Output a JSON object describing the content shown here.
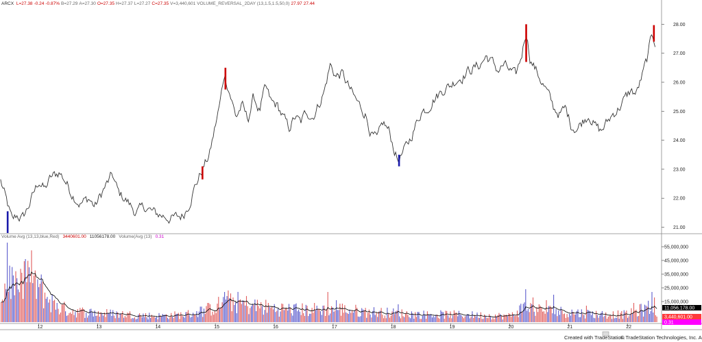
{
  "header": {
    "symbol": "ARCX",
    "quote_items": [
      {
        "text": "L=27.38",
        "color": "#cc0000"
      },
      {
        "text": "-0.24",
        "color": "#cc0000"
      },
      {
        "text": "-0.87%",
        "color": "#cc0000"
      },
      {
        "text": "B=27.29",
        "color": "#666666"
      },
      {
        "text": "A=27.30",
        "color": "#666666"
      },
      {
        "text": "O=27.35",
        "color": "#cc0000"
      },
      {
        "text": "H=27.37",
        "color": "#666666"
      },
      {
        "text": "L=27.27",
        "color": "#666666"
      },
      {
        "text": "C=27.35",
        "color": "#cc0000"
      },
      {
        "text": "V=3,440,601",
        "color": "#666666"
      },
      {
        "text": "VOLUME_REVERSAL_2DAY (13,1.5,1.5,50,0)",
        "color": "#666666"
      },
      {
        "text": "27.97",
        "color": "#cc0000"
      },
      {
        "text": "27.44",
        "color": "#cc0000"
      }
    ]
  },
  "volume_header": {
    "items": [
      {
        "text": "Volume Avg (13,13,blue,Red)",
        "color": "#666666"
      },
      {
        "text": "3440601.00",
        "color": "#cc0000"
      },
      {
        "text": "11056178.00",
        "color": "#222222"
      },
      {
        "text": "Volume(Avg (13)",
        "color": "#666666"
      },
      {
        "text": "0.31",
        "color": "#cc00cc"
      }
    ]
  },
  "footer": {
    "created": "Created with TradeStation.",
    "copyright": "© TradeStation Technologies, Inc. All rights reserved."
  },
  "colors": {
    "price_line": "#333333",
    "reversal_up": "#cc0000",
    "reversal_down": "#1a1aaa",
    "volume_up": "#e05a5a",
    "volume_down": "#5a5acc",
    "volume_avg": "#000000"
  },
  "chart_data": [
    {
      "type": "line",
      "ylim": [
        20.8,
        28.6
      ],
      "xlim": [
        11.34,
        22.58
      ],
      "yticks": [
        "21.00",
        "22.00",
        "23.00",
        "24.00",
        "25.00",
        "26.00",
        "27.00",
        "28.00"
      ],
      "ytick_values": [
        21,
        22,
        23,
        24,
        25,
        26,
        27,
        28
      ],
      "xticks": [
        "12",
        "13",
        "14",
        "15",
        "16",
        "17",
        "18",
        "19",
        "20",
        "21",
        "22"
      ],
      "xtick_values": [
        12,
        13,
        14,
        15,
        16,
        17,
        18,
        19,
        20,
        21,
        22
      ],
      "anchors": [
        [
          11.35,
          22.6
        ],
        [
          11.45,
          21.9
        ],
        [
          11.55,
          21.2
        ],
        [
          11.62,
          21.4
        ],
        [
          11.72,
          21.3
        ],
        [
          11.82,
          21.7
        ],
        [
          11.9,
          22.1
        ],
        [
          12.0,
          22.6
        ],
        [
          12.1,
          22.3
        ],
        [
          12.2,
          22.7
        ],
        [
          12.35,
          22.9
        ],
        [
          12.45,
          22.6
        ],
        [
          12.55,
          22.2
        ],
        [
          12.7,
          21.8
        ],
        [
          12.85,
          22.0
        ],
        [
          12.95,
          21.7
        ],
        [
          13.1,
          22.3
        ],
        [
          13.25,
          22.8
        ],
        [
          13.35,
          22.2
        ],
        [
          13.5,
          21.9
        ],
        [
          13.65,
          21.5
        ],
        [
          13.8,
          21.7
        ],
        [
          13.95,
          21.5
        ],
        [
          14.1,
          21.4
        ],
        [
          14.25,
          21.3
        ],
        [
          14.45,
          21.4
        ],
        [
          14.55,
          21.8
        ],
        [
          14.65,
          22.4
        ],
        [
          14.78,
          23.0
        ],
        [
          14.9,
          23.5
        ],
        [
          15.0,
          24.5
        ],
        [
          15.08,
          25.3
        ],
        [
          15.15,
          26.3
        ],
        [
          15.25,
          25.6
        ],
        [
          15.35,
          24.8
        ],
        [
          15.45,
          25.2
        ],
        [
          15.55,
          24.7
        ],
        [
          15.65,
          25.5
        ],
        [
          15.75,
          25.0
        ],
        [
          15.85,
          25.8
        ],
        [
          15.95,
          25.3
        ],
        [
          16.05,
          25.2
        ],
        [
          16.15,
          24.8
        ],
        [
          16.25,
          24.4
        ],
        [
          16.35,
          24.8
        ],
        [
          16.45,
          24.6
        ],
        [
          16.55,
          25.0
        ],
        [
          16.65,
          24.8
        ],
        [
          16.75,
          25.2
        ],
        [
          16.85,
          25.7
        ],
        [
          16.95,
          26.6
        ],
        [
          17.05,
          26.2
        ],
        [
          17.15,
          26.3
        ],
        [
          17.25,
          25.9
        ],
        [
          17.35,
          25.5
        ],
        [
          17.45,
          25.2
        ],
        [
          17.55,
          24.9
        ],
        [
          17.65,
          24.2
        ],
        [
          17.75,
          24.0
        ],
        [
          17.85,
          24.6
        ],
        [
          17.95,
          24.3
        ],
        [
          18.05,
          23.6
        ],
        [
          18.1,
          23.3
        ],
        [
          18.2,
          23.6
        ],
        [
          18.3,
          24.0
        ],
        [
          18.4,
          24.5
        ],
        [
          18.5,
          25.0
        ],
        [
          18.6,
          25.1
        ],
        [
          18.7,
          25.4
        ],
        [
          18.8,
          25.6
        ],
        [
          18.9,
          25.8
        ],
        [
          19.0,
          25.9
        ],
        [
          19.1,
          26.1
        ],
        [
          19.2,
          26.2
        ],
        [
          19.3,
          26.4
        ],
        [
          19.4,
          26.5
        ],
        [
          19.5,
          26.6
        ],
        [
          19.6,
          26.9
        ],
        [
          19.7,
          26.7
        ],
        [
          19.8,
          26.4
        ],
        [
          19.9,
          26.6
        ],
        [
          20.0,
          26.4
        ],
        [
          20.1,
          26.2
        ],
        [
          20.2,
          26.9
        ],
        [
          20.28,
          27.8
        ],
        [
          20.35,
          26.8
        ],
        [
          20.45,
          26.4
        ],
        [
          20.55,
          26.0
        ],
        [
          20.65,
          25.6
        ],
        [
          20.75,
          25.1
        ],
        [
          20.85,
          24.9
        ],
        [
          20.95,
          25.1
        ],
        [
          21.05,
          24.5
        ],
        [
          21.15,
          24.4
        ],
        [
          21.25,
          24.7
        ],
        [
          21.35,
          24.9
        ],
        [
          21.45,
          24.5
        ],
        [
          21.55,
          24.3
        ],
        [
          21.65,
          24.6
        ],
        [
          21.75,
          24.9
        ],
        [
          21.85,
          25.1
        ],
        [
          21.95,
          25.4
        ],
        [
          22.05,
          25.7
        ],
        [
          22.15,
          25.6
        ],
        [
          22.25,
          26.2
        ],
        [
          22.35,
          26.9
        ],
        [
          22.42,
          27.7
        ],
        [
          22.47,
          27.4
        ]
      ],
      "reversal_bars": [
        {
          "x": 11.47,
          "low": 20.8,
          "high": 21.55,
          "color": "down"
        },
        {
          "x": 14.78,
          "low": 22.65,
          "high": 23.1,
          "color": "up"
        },
        {
          "x": 15.17,
          "low": 25.75,
          "high": 26.5,
          "color": "up"
        },
        {
          "x": 18.12,
          "low": 23.1,
          "high": 23.5,
          "color": "down"
        },
        {
          "x": 20.28,
          "low": 26.7,
          "high": 28.0,
          "color": "up"
        },
        {
          "x": 22.45,
          "low": 27.4,
          "high": 27.97,
          "color": "up"
        }
      ]
    },
    {
      "type": "bar",
      "ylim": [
        0,
        60000000
      ],
      "xlim": [
        11.34,
        22.58
      ],
      "yticks": [
        "55,000,000",
        "45,000,000",
        "35,000,000",
        "25,000,000",
        "15,000,000"
      ],
      "ytick_values": [
        55000000,
        45000000,
        35000000,
        25000000,
        15000000
      ],
      "xticks": [
        "12",
        "13",
        "14",
        "15",
        "16",
        "17",
        "18",
        "19",
        "20",
        "21",
        "22"
      ],
      "xtick_values": [
        12,
        13,
        14,
        15,
        16,
        17,
        18,
        19,
        20,
        21,
        22
      ],
      "markers": [
        {
          "label": "11,056,178.00",
          "value": 11056178,
          "bg": "#000000",
          "fg": "#ffffff"
        },
        {
          "label": "3,440,601.00",
          "value": 3440601,
          "bg": "#ff3b3b",
          "fg": "#ffffff"
        },
        {
          "label": "0.31",
          "value": 0.31,
          "bg": "#ff00ff",
          "fg": "#ffffff"
        }
      ],
      "volume_anchors": [
        [
          11.35,
          15
        ],
        [
          11.5,
          30
        ],
        [
          11.65,
          18
        ],
        [
          11.8,
          36
        ],
        [
          11.95,
          26
        ],
        [
          12.1,
          18
        ],
        [
          12.3,
          10
        ],
        [
          12.6,
          7
        ],
        [
          13.0,
          6
        ],
        [
          13.5,
          5
        ],
        [
          14.0,
          4
        ],
        [
          14.5,
          5
        ],
        [
          14.85,
          8
        ],
        [
          15.05,
          11
        ],
        [
          15.25,
          14
        ],
        [
          15.6,
          11
        ],
        [
          16.0,
          9
        ],
        [
          16.5,
          8
        ],
        [
          17.0,
          9
        ],
        [
          17.5,
          7
        ],
        [
          18.0,
          6
        ],
        [
          18.5,
          5
        ],
        [
          19.0,
          5
        ],
        [
          19.5,
          4.5
        ],
        [
          20.0,
          4
        ],
        [
          20.25,
          10
        ],
        [
          20.5,
          8
        ],
        [
          20.8,
          7
        ],
        [
          21.2,
          6
        ],
        [
          21.6,
          5
        ],
        [
          22.0,
          5
        ],
        [
          22.4,
          10
        ],
        [
          22.5,
          8
        ]
      ],
      "spikes": [
        [
          11.46,
          58
        ],
        [
          11.62,
          32
        ],
        [
          11.72,
          36
        ],
        [
          11.78,
          46
        ],
        [
          11.84,
          40
        ],
        [
          11.92,
          34
        ],
        [
          12.02,
          28
        ],
        [
          12.3,
          14
        ],
        [
          15.15,
          22
        ],
        [
          15.3,
          18
        ],
        [
          16.9,
          22
        ],
        [
          17.05,
          16
        ],
        [
          18.1,
          13
        ],
        [
          20.28,
          24
        ],
        [
          20.4,
          18
        ],
        [
          20.62,
          16
        ],
        [
          20.75,
          20
        ],
        [
          21.3,
          12
        ],
        [
          22.1,
          14
        ],
        [
          22.42,
          22
        ],
        [
          22.46,
          18
        ]
      ]
    }
  ]
}
